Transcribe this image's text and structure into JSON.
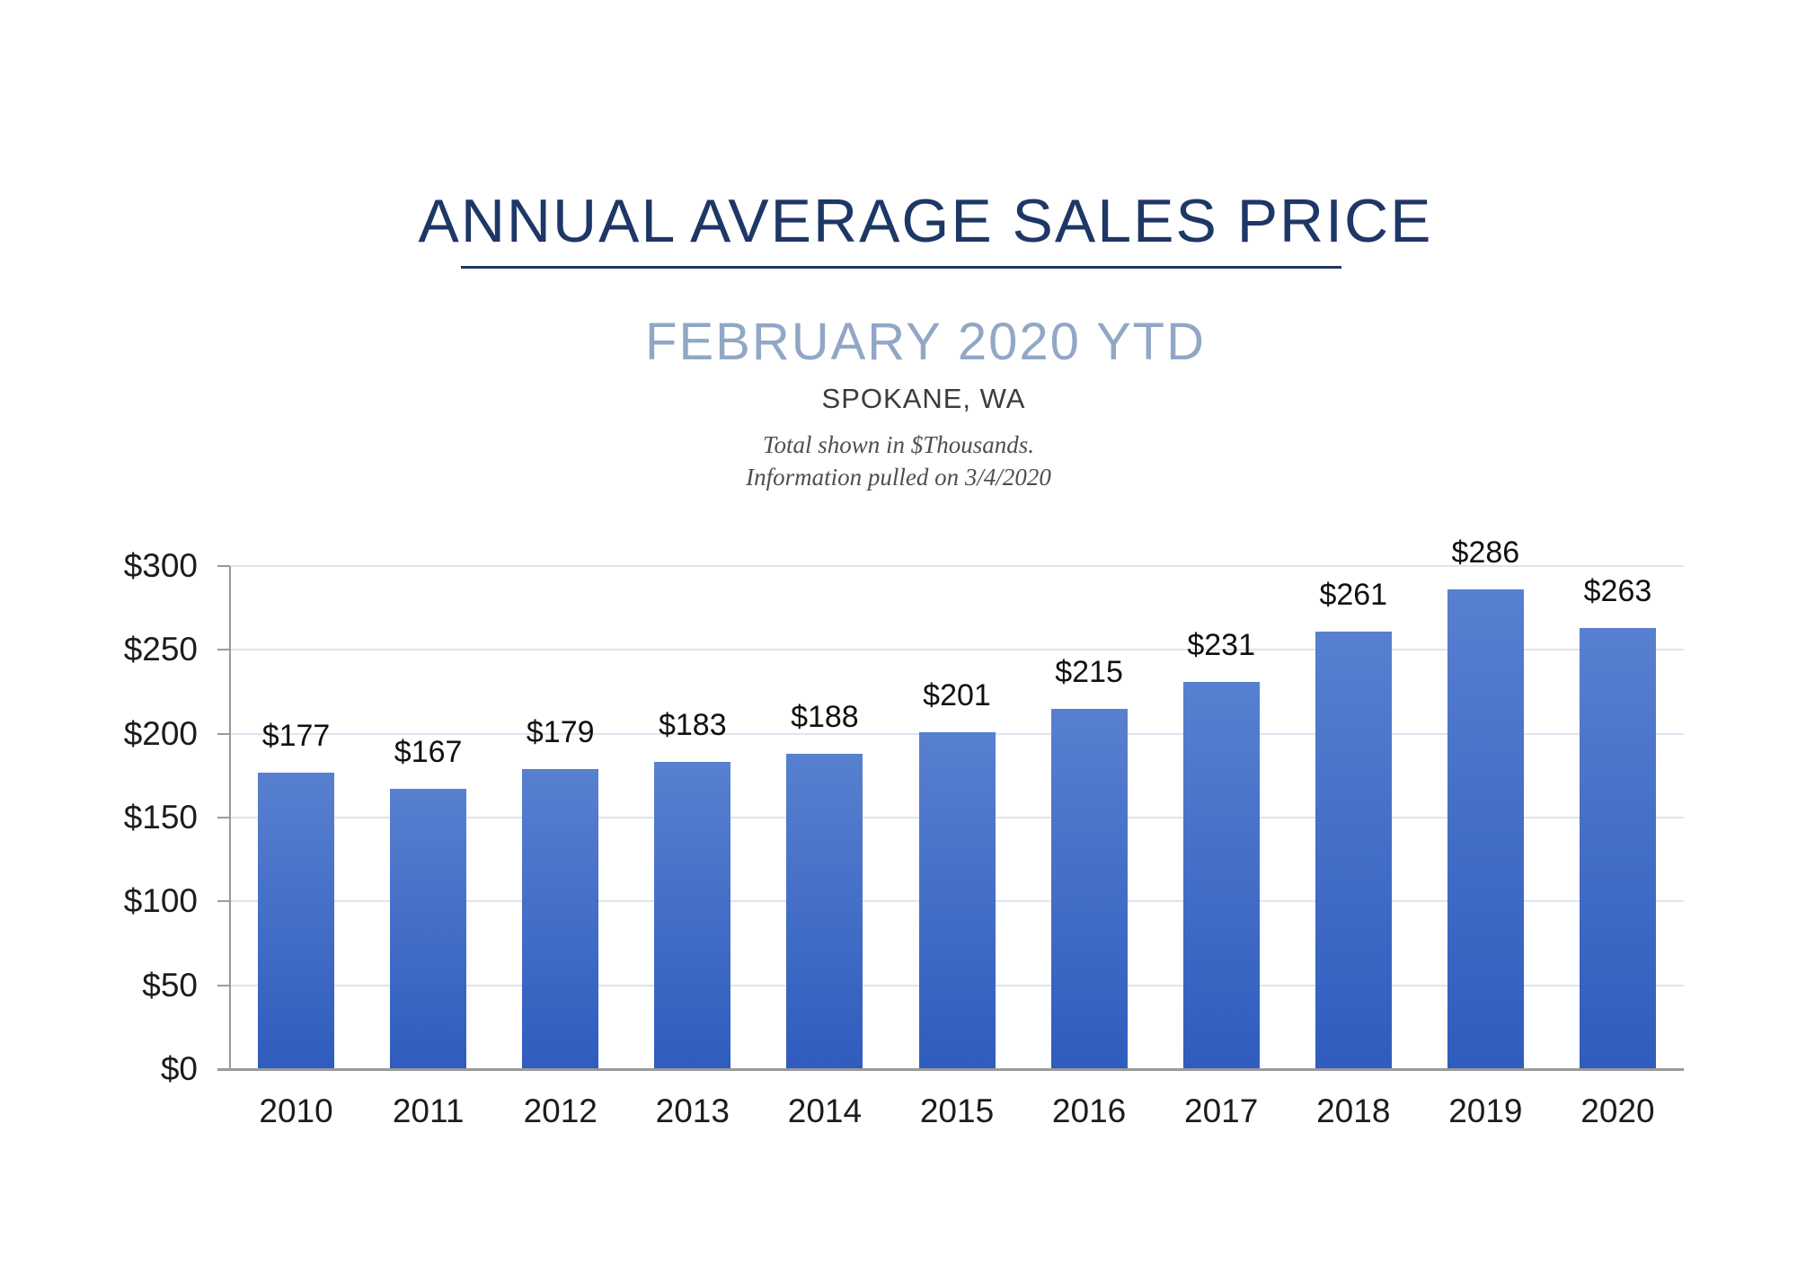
{
  "header": {
    "title": "ANNUAL AVERAGE SALES PRICE",
    "subtitle": "FEBRUARY 2020 YTD",
    "location": "SPOKANE, WA",
    "note_line1": "Total shown in $Thousands.",
    "note_line2": "Information pulled on 3/4/2020"
  },
  "colors": {
    "title_navy": "#1d3766",
    "subtitle_blue_gray": "#92a7c5",
    "bar_gradient_top": "#5880d0",
    "bar_gradient_bottom": "#2f5cbe",
    "gridline": "#e0e3f1",
    "axis_gray": "#9a9a9a",
    "text_dark": "#1c1c1c"
  },
  "chart_data": {
    "type": "bar",
    "title": "ANNUAL AVERAGE SALES PRICE",
    "subtitle": "FEBRUARY 2020 YTD — SPOKANE, WA",
    "units": "$ Thousands",
    "categories": [
      "2010",
      "2011",
      "2012",
      "2013",
      "2014",
      "2015",
      "2016",
      "2017",
      "2018",
      "2019",
      "2020"
    ],
    "values": [
      177,
      167,
      179,
      183,
      188,
      201,
      215,
      231,
      261,
      286,
      263
    ],
    "data_labels": [
      "$177",
      "$167",
      "$179",
      "$183",
      "$188",
      "$201",
      "$215",
      "$231",
      "$261",
      "$286",
      "$263"
    ],
    "y_ticks": [
      "$0",
      "$50",
      "$100",
      "$150",
      "$200",
      "$250",
      "$300"
    ],
    "y_tick_values": [
      0,
      50,
      100,
      150,
      200,
      250,
      300
    ],
    "ylim": [
      0,
      300
    ],
    "xlabel": "",
    "ylabel": "",
    "grid": true,
    "legend": "none"
  }
}
